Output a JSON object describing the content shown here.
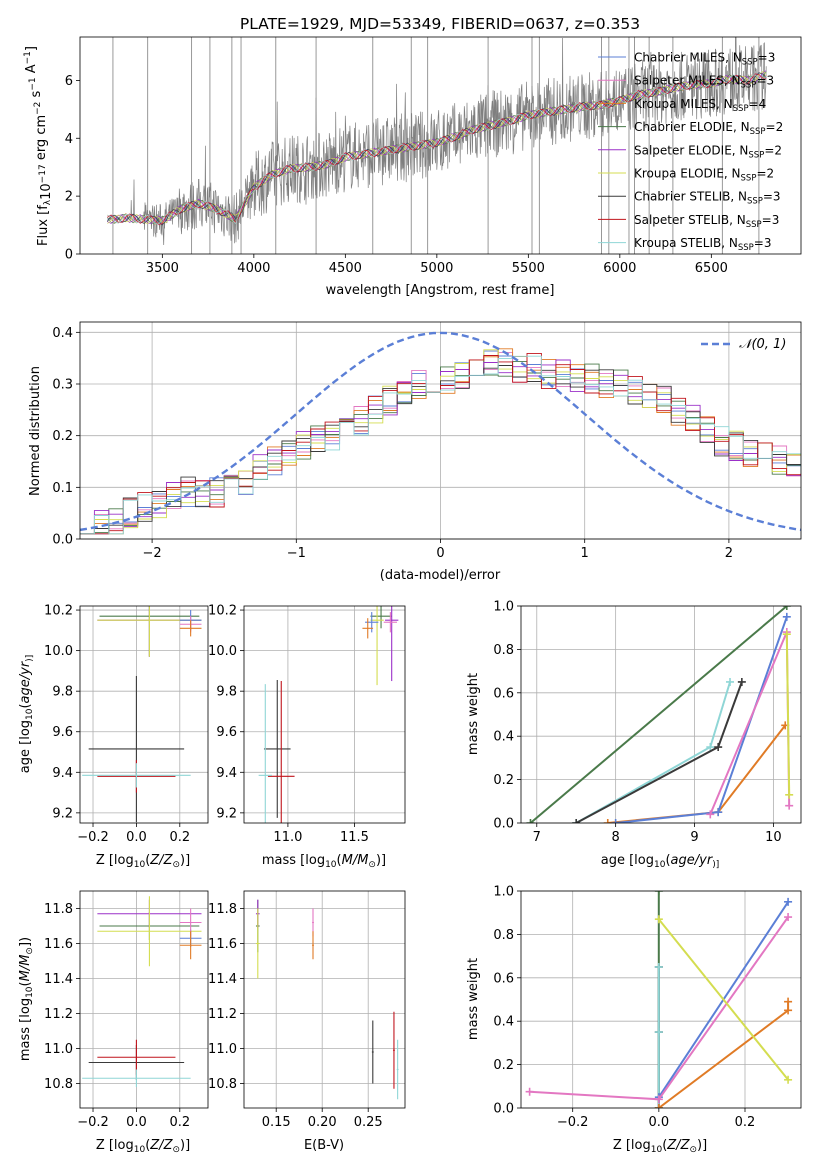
{
  "figure_title": "PLATE=1929, MJD=53349, FIBERID=0637, z=0.353",
  "legend_models": [
    {
      "name": "Chabrier MILES, N",
      "nssp": 3,
      "color": "#5b7fd6"
    },
    {
      "name": "Salpeter MILES, N",
      "nssp": 3,
      "color": "#e377c2"
    },
    {
      "name": "Kroupa MILES, N",
      "nssp": 4,
      "color": "#e07b26"
    },
    {
      "name": "Chabrier ELODIE, N",
      "nssp": 2,
      "color": "#4a7a4a"
    },
    {
      "name": "Salpeter ELODIE, N",
      "nssp": 2,
      "color": "#9b30c8"
    },
    {
      "name": "Kroupa ELODIE, N",
      "nssp": 2,
      "color": "#d4dd50"
    },
    {
      "name": "Chabrier STELIB, N",
      "nssp": 3,
      "color": "#3a3a3a"
    },
    {
      "name": "Salpeter STELIB, N",
      "nssp": 3,
      "color": "#c0141c"
    },
    {
      "name": "Kroupa STELIB, N",
      "nssp": 3,
      "color": "#8fd6d6"
    }
  ],
  "legend_sub": "SSP",
  "normal_legend": "𝒩(0, 1)",
  "chart_data": [
    {
      "type": "line",
      "id": "spectrum",
      "xlabel": "wavelength [Angstrom, rest frame]",
      "ylabel_parts": [
        "Flux [f",
        "λ",
        "10",
        "−17",
        " erg cm",
        "−2",
        " s",
        "−1",
        " A",
        "−1",
        "]"
      ],
      "xlim": [
        3050,
        6990
      ],
      "ylim": [
        0,
        7.5
      ],
      "xticks": [
        3500,
        4000,
        4500,
        5000,
        5500,
        6000,
        6500
      ],
      "yticks": [
        0,
        2,
        4,
        6
      ],
      "continuum": {
        "x": [
          3200,
          3250,
          3300,
          3400,
          3500,
          3600,
          3700,
          3800,
          3900,
          4000,
          4100,
          4200,
          4300,
          4400,
          4500,
          4600,
          4700,
          4800,
          4900,
          5000,
          5100,
          5200,
          5300,
          5400,
          5500,
          5600,
          5700,
          5800,
          5900,
          6000,
          6100,
          6200,
          6300,
          6400,
          6500,
          6600,
          6700,
          6800
        ],
        "y": [
          1.2,
          1.2,
          1.25,
          1.2,
          1.15,
          1.55,
          1.75,
          1.55,
          1.2,
          2.3,
          2.75,
          2.95,
          3.0,
          3.1,
          3.35,
          3.45,
          3.55,
          3.65,
          3.75,
          3.85,
          4.05,
          4.3,
          4.45,
          4.6,
          4.8,
          4.9,
          5.0,
          5.1,
          5.15,
          5.3,
          5.5,
          5.6,
          5.75,
          5.85,
          5.9,
          6.05,
          6.0,
          6.2
        ]
      },
      "spikes_x": [
        3230,
        3420,
        3660,
        3760,
        3880,
        3930,
        4120,
        4340,
        4650,
        4860,
        4950,
        5280,
        5520,
        5560,
        5900,
        5940,
        6050,
        6080,
        6160,
        6290,
        6560,
        6760
      ]
    },
    {
      "type": "step",
      "id": "residual_hist",
      "xlabel": "(data-model)/error",
      "ylabel": "Normed distribution",
      "xlim": [
        -2.5,
        2.5
      ],
      "ylim": [
        0,
        0.42
      ],
      "xticks": [
        -2,
        -1,
        0,
        1,
        2
      ],
      "yticks": [
        0.0,
        0.1,
        0.2,
        0.3,
        0.4
      ],
      "bin_width": 0.1,
      "base": [
        0.035,
        0.03,
        0.035,
        0.05,
        0.06,
        0.07,
        0.085,
        0.09,
        0.09,
        0.09,
        0.1,
        0.11,
        0.135,
        0.15,
        0.17,
        0.18,
        0.19,
        0.2,
        0.21,
        0.23,
        0.25,
        0.27,
        0.28,
        0.3,
        0.3,
        0.31,
        0.32,
        0.33,
        0.34,
        0.34,
        0.33,
        0.33,
        0.32,
        0.32,
        0.31,
        0.31,
        0.3,
        0.3,
        0.29,
        0.28,
        0.27,
        0.25,
        0.23,
        0.21,
        0.19,
        0.18,
        0.17,
        0.16,
        0.15,
        0.14,
        0.13,
        0.12,
        0.115,
        0.11,
        0.1,
        0.095,
        0.085,
        0.075,
        0.065,
        0.06
      ]
    },
    {
      "type": "scatter",
      "id": "age_vs_Z",
      "xlabel_parts": [
        "Z [log",
        "10",
        "(",
        "Z/Z",
        "⊙",
        ")]"
      ],
      "ylabel_parts": [
        "age  [log",
        "10",
        "(",
        "age/yr",
        ")]"
      ],
      "xlim": [
        -0.26,
        0.33
      ],
      "ylim": [
        9.15,
        10.22
      ],
      "xticks": [
        -0.2,
        0.0,
        0.2
      ],
      "yticks": [
        9.2,
        9.4,
        9.6,
        9.8,
        10.0,
        10.2
      ],
      "points": [
        {
          "x": 0.0,
          "y": 9.515,
          "xe": 0.22,
          "ye": 0.36,
          "c": 6
        },
        {
          "x": 0.0,
          "y": 9.38,
          "xe": 0.18,
          "ye": 0.08,
          "c": 7
        },
        {
          "x": 0.0,
          "y": 9.385,
          "xe": 0.25,
          "ye": 0.06,
          "c": 8
        },
        {
          "x": 0.06,
          "y": 10.17,
          "xe": 0.23,
          "ye": 0.2,
          "c": 3
        },
        {
          "x": 0.06,
          "y": 10.15,
          "xe": 0.24,
          "ye": 0.18,
          "c": 4
        },
        {
          "x": 0.06,
          "y": 10.15,
          "xe": 0.24,
          "ye": 0.18,
          "c": 5
        },
        {
          "x": 0.25,
          "y": 10.15,
          "xe": 0.05,
          "ye": 0.05,
          "c": 0
        },
        {
          "x": 0.25,
          "y": 10.13,
          "xe": 0.05,
          "ye": 0.04,
          "c": 1
        },
        {
          "x": 0.25,
          "y": 10.11,
          "xe": 0.05,
          "ye": 0.04,
          "c": 2
        }
      ]
    },
    {
      "type": "scatter",
      "id": "age_vs_mass",
      "xlabel_parts": [
        "mass [log",
        "10",
        "(",
        "M/M",
        "⊙",
        ")]"
      ],
      "xlim": [
        10.67,
        11.88
      ],
      "ylim": [
        9.15,
        10.22
      ],
      "xticks": [
        11.0,
        11.5
      ],
      "yticks": [
        9.2,
        9.4,
        9.6,
        9.8,
        10.0,
        10.2
      ],
      "points": [
        {
          "x": 10.92,
          "y": 9.515,
          "xe": 0.1,
          "ye": 0.34,
          "c": 6
        },
        {
          "x": 10.95,
          "y": 9.38,
          "xe": 0.1,
          "ye": 0.47,
          "c": 7
        },
        {
          "x": 10.83,
          "y": 9.385,
          "xe": 0.05,
          "ye": 0.45,
          "c": 8
        },
        {
          "x": 11.7,
          "y": 10.17,
          "xe": 0.08,
          "ye": 0.06,
          "c": 3
        },
        {
          "x": 11.78,
          "y": 10.15,
          "xe": 0.05,
          "ye": 0.3,
          "c": 4
        },
        {
          "x": 11.67,
          "y": 10.15,
          "xe": 0.05,
          "ye": 0.32,
          "c": 5
        },
        {
          "x": 11.63,
          "y": 10.14,
          "xe": 0.05,
          "ye": 0.05,
          "c": 0
        },
        {
          "x": 11.77,
          "y": 10.14,
          "xe": 0.05,
          "ye": 0.05,
          "c": 1
        },
        {
          "x": 11.6,
          "y": 10.11,
          "xe": 0.04,
          "ye": 0.05,
          "c": 2
        }
      ]
    },
    {
      "type": "line",
      "id": "mass_weight_vs_age",
      "xlabel_parts": [
        "age  [log",
        "10",
        "(",
        "age/yr",
        ")]"
      ],
      "ylabel": "mass weight",
      "xlim": [
        6.8,
        10.35
      ],
      "ylim": [
        0,
        1.0
      ],
      "xticks": [
        7,
        8,
        9,
        10
      ],
      "yticks": [
        0.0,
        0.2,
        0.4,
        0.6,
        0.8,
        1.0
      ],
      "series": [
        {
          "c": 3,
          "x": [
            6.92,
            10.17
          ],
          "y": [
            0.0,
            1.0
          ]
        },
        {
          "c": 8,
          "x": [
            7.5,
            9.2,
            9.45
          ],
          "y": [
            0.0,
            0.35,
            0.65
          ]
        },
        {
          "c": 6,
          "x": [
            7.5,
            9.3,
            9.6
          ],
          "y": [
            0.0,
            0.35,
            0.65
          ]
        },
        {
          "c": 2,
          "x": [
            7.9,
            9.3,
            10.15
          ],
          "y": [
            0.0,
            0.05,
            0.45
          ]
        },
        {
          "c": 0,
          "x": [
            8.0,
            9.3,
            10.17
          ],
          "y": [
            0.0,
            0.05,
            0.95
          ]
        },
        {
          "c": 1,
          "x": [
            9.2,
            10.17,
            10.2
          ],
          "y": [
            0.04,
            0.88,
            0.08
          ]
        },
        {
          "c": 5,
          "x": [
            10.17,
            10.2
          ],
          "y": [
            0.87,
            0.13
          ]
        }
      ]
    },
    {
      "type": "scatter",
      "id": "mass_vs_Z",
      "xlabel_parts": [
        "Z [log",
        "10",
        "(",
        "Z/Z",
        "⊙",
        ")]"
      ],
      "ylabel_parts": [
        "mass [log",
        "10",
        "(",
        "M/M",
        "⊙",
        "])"
      ],
      "xlim": [
        -0.26,
        0.33
      ],
      "ylim": [
        10.66,
        11.9
      ],
      "xticks": [
        -0.2,
        0.0,
        0.2
      ],
      "yticks": [
        10.8,
        11.0,
        11.2,
        11.4,
        11.6,
        11.8
      ],
      "points": [
        {
          "x": 0.0,
          "y": 10.92,
          "xe": 0.22,
          "ye": 0.1,
          "c": 6
        },
        {
          "x": 0.0,
          "y": 10.95,
          "xe": 0.18,
          "ye": 0.1,
          "c": 7
        },
        {
          "x": 0.0,
          "y": 10.83,
          "xe": 0.25,
          "ye": 0.05,
          "c": 8
        },
        {
          "x": 0.06,
          "y": 11.7,
          "xe": 0.23,
          "ye": 0.08,
          "c": 3
        },
        {
          "x": 0.06,
          "y": 11.77,
          "xe": 0.24,
          "ye": 0.08,
          "c": 4
        },
        {
          "x": 0.06,
          "y": 11.67,
          "xe": 0.24,
          "ye": 0.2,
          "c": 5
        },
        {
          "x": 0.25,
          "y": 11.63,
          "xe": 0.05,
          "ye": 0.05,
          "c": 0
        },
        {
          "x": 0.25,
          "y": 11.72,
          "xe": 0.05,
          "ye": 0.08,
          "c": 1
        },
        {
          "x": 0.25,
          "y": 11.59,
          "xe": 0.05,
          "ye": 0.08,
          "c": 2
        }
      ]
    },
    {
      "type": "scatter",
      "id": "mass_vs_ebv",
      "xlabel": "E(B-V)",
      "xlim": [
        0.115,
        0.29
      ],
      "ylim": [
        10.66,
        11.9
      ],
      "xticks": [
        0.15,
        0.2,
        0.25
      ],
      "yticks": [
        10.8,
        11.0,
        11.2,
        11.4,
        11.6,
        11.8
      ],
      "points": [
        {
          "x": 0.13,
          "y": 11.7,
          "xe": 0.002,
          "ye": 0.15,
          "c": 3
        },
        {
          "x": 0.13,
          "y": 11.77,
          "xe": 0.002,
          "ye": 0.08,
          "c": 4
        },
        {
          "x": 0.13,
          "y": 11.6,
          "xe": 0.002,
          "ye": 0.2,
          "c": 5
        },
        {
          "x": 0.19,
          "y": 11.72,
          "xe": 0.001,
          "ye": 0.08,
          "c": 1
        },
        {
          "x": 0.19,
          "y": 11.59,
          "xe": 0.001,
          "ye": 0.08,
          "c": 2
        },
        {
          "x": 0.255,
          "y": 10.98,
          "xe": 0.001,
          "ye": 0.18,
          "c": 6
        },
        {
          "x": 0.278,
          "y": 10.99,
          "xe": 0.001,
          "ye": 0.22,
          "c": 7
        },
        {
          "x": 0.282,
          "y": 10.88,
          "xe": 0.001,
          "ye": 0.17,
          "c": 8
        }
      ]
    },
    {
      "type": "line",
      "id": "mass_weight_vs_Z",
      "xlabel_parts": [
        "Z [log",
        "10",
        "(",
        "Z/Z",
        "⊙",
        ")]"
      ],
      "ylabel": "mass weight",
      "xlim": [
        -0.32,
        0.33
      ],
      "ylim": [
        0,
        1.0
      ],
      "xticks": [
        -0.2,
        0.0,
        0.2
      ],
      "yticks": [
        0.0,
        0.2,
        0.4,
        0.6,
        0.8,
        1.0
      ],
      "series": [
        {
          "c": 3,
          "x": [
            0.0,
            0.0
          ],
          "y": [
            0.0,
            1.0
          ]
        },
        {
          "c": 6,
          "x": [
            0.0,
            0.0,
            0.0
          ],
          "y": [
            0.0,
            0.35,
            0.65
          ]
        },
        {
          "c": 8,
          "x": [
            0.0,
            0.0,
            0.0
          ],
          "y": [
            0.0,
            0.35,
            0.65
          ]
        },
        {
          "c": 0,
          "x": [
            0.0,
            0.3
          ],
          "y": [
            0.05,
            0.95
          ]
        },
        {
          "c": 2,
          "x": [
            0.0,
            0.3,
            0.3
          ],
          "y": [
            0.0,
            0.45,
            0.49
          ]
        },
        {
          "c": 1,
          "x": [
            -0.3,
            0.0,
            0.3
          ],
          "y": [
            0.075,
            0.04,
            0.88
          ]
        },
        {
          "c": 5,
          "x": [
            0.0,
            0.3
          ],
          "y": [
            0.87,
            0.13
          ]
        }
      ]
    }
  ]
}
